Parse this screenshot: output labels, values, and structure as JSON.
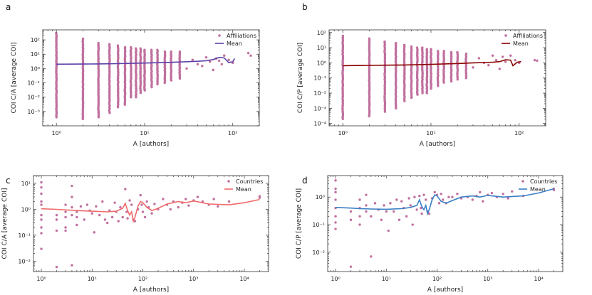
{
  "chart_data": [
    {
      "panel": "a",
      "type": "scatter",
      "xscale": "log",
      "yscale": "log",
      "xlim": [
        0.7,
        200
      ],
      "ylim": [
        0.0001,
        500
      ],
      "xlabel": "A [authors]",
      "ylabel": "COI C/A [average COI]",
      "xticks": [
        1,
        10,
        100
      ],
      "yticks": [
        0.001,
        0.01,
        0.1,
        1,
        10,
        100
      ],
      "legend": {
        "position": "top-right",
        "scatter_label": "Affiliations",
        "line_label": "Mean"
      },
      "scatter_color": "#c0709f",
      "line_color": "#5b3fa8",
      "columns": [
        {
          "x": 1,
          "ymin": 0.0004,
          "ymax": 300
        },
        {
          "x": 2,
          "ymin": 0.0003,
          "ymax": 120
        },
        {
          "x": 3,
          "ymin": 0.0004,
          "ymax": 60
        },
        {
          "x": 4,
          "ymin": 0.0008,
          "ymax": 50
        },
        {
          "x": 5,
          "ymin": 0.002,
          "ymax": 40
        },
        {
          "x": 6,
          "ymin": 0.003,
          "ymax": 30
        },
        {
          "x": 7,
          "ymin": 0.01,
          "ymax": 30
        },
        {
          "x": 8,
          "ymin": 0.01,
          "ymax": 25
        },
        {
          "x": 9,
          "ymin": 0.02,
          "ymax": 25
        },
        {
          "x": 10,
          "ymin": 0.03,
          "ymax": 20
        },
        {
          "x": 12,
          "ymin": 0.05,
          "ymax": 20
        },
        {
          "x": 14,
          "ymin": 0.08,
          "ymax": 20
        },
        {
          "x": 17,
          "ymin": 0.1,
          "ymax": 15
        },
        {
          "x": 20,
          "ymin": 0.15,
          "ymax": 15
        },
        {
          "x": 25,
          "ymin": 0.2,
          "ymax": 15
        }
      ],
      "scatter": [
        [
          30,
          1.0
        ],
        [
          35,
          4.0
        ],
        [
          40,
          2.0
        ],
        [
          45,
          1.5
        ],
        [
          50,
          6.0
        ],
        [
          55,
          3.0
        ],
        [
          60,
          0.8
        ],
        [
          65,
          5.0
        ],
        [
          70,
          3.5
        ],
        [
          75,
          2.0
        ],
        [
          80,
          8.0
        ],
        [
          90,
          4.0
        ],
        [
          100,
          2.5
        ],
        [
          150,
          12.0
        ],
        [
          160,
          8.0
        ]
      ],
      "mean": [
        [
          1,
          2.0
        ],
        [
          2,
          2.05
        ],
        [
          3,
          2.1
        ],
        [
          5,
          2.2
        ],
        [
          10,
          2.4
        ],
        [
          20,
          2.7
        ],
        [
          30,
          3.0
        ],
        [
          40,
          3.2
        ],
        [
          50,
          3.5
        ],
        [
          60,
          4.2
        ],
        [
          70,
          6.0
        ],
        [
          80,
          5.5
        ],
        [
          90,
          2.6
        ],
        [
          100,
          3.0
        ],
        [
          105,
          5.0
        ]
      ]
    },
    {
      "panel": "b",
      "type": "scatter",
      "xscale": "log",
      "yscale": "log",
      "xlim": [
        0.7,
        200
      ],
      "ylim": [
        7e-05,
        150
      ],
      "xlabel": "A [authors]",
      "ylabel": "COI C/P [average COI]",
      "xticks": [
        1,
        10,
        100
      ],
      "yticks": [
        0.0001,
        0.001,
        0.01,
        0.1,
        1,
        10,
        100
      ],
      "legend": {
        "position": "top-right",
        "scatter_label": "Affiliations",
        "line_label": "Mean"
      },
      "scatter_color": "#c0709f",
      "line_color": "#8b0000",
      "columns": [
        {
          "x": 1,
          "ymin": 0.0002,
          "ymax": 60
        },
        {
          "x": 2,
          "ymin": 0.0003,
          "ymax": 40
        },
        {
          "x": 3,
          "ymin": 0.0006,
          "ymax": 25
        },
        {
          "x": 4,
          "ymin": 0.001,
          "ymax": 20
        },
        {
          "x": 5,
          "ymin": 0.003,
          "ymax": 15
        },
        {
          "x": 6,
          "ymin": 0.005,
          "ymax": 12
        },
        {
          "x": 7,
          "ymin": 0.008,
          "ymax": 10
        },
        {
          "x": 8,
          "ymin": 0.01,
          "ymax": 10
        },
        {
          "x": 9,
          "ymin": 0.01,
          "ymax": 8
        },
        {
          "x": 10,
          "ymin": 0.02,
          "ymax": 8
        },
        {
          "x": 12,
          "ymin": 0.03,
          "ymax": 6
        },
        {
          "x": 14,
          "ymin": 0.05,
          "ymax": 6
        },
        {
          "x": 17,
          "ymin": 0.06,
          "ymax": 5
        },
        {
          "x": 20,
          "ymin": 0.08,
          "ymax": 5
        },
        {
          "x": 25,
          "ymin": 0.1,
          "ymax": 4
        }
      ],
      "scatter": [
        [
          30,
          0.5
        ],
        [
          35,
          2.0
        ],
        [
          40,
          1.0
        ],
        [
          45,
          0.7
        ],
        [
          50,
          3.0
        ],
        [
          55,
          1.5
        ],
        [
          60,
          0.4
        ],
        [
          65,
          2.5
        ],
        [
          70,
          1.2
        ],
        [
          80,
          3.0
        ],
        [
          90,
          1.5
        ],
        [
          100,
          1.0
        ],
        [
          150,
          1.5
        ],
        [
          160,
          1.4
        ]
      ],
      "mean": [
        [
          1,
          0.65
        ],
        [
          2,
          0.68
        ],
        [
          3,
          0.7
        ],
        [
          5,
          0.72
        ],
        [
          10,
          0.8
        ],
        [
          20,
          0.9
        ],
        [
          30,
          1.0
        ],
        [
          40,
          1.05
        ],
        [
          50,
          1.1
        ],
        [
          60,
          1.2
        ],
        [
          70,
          1.6
        ],
        [
          80,
          1.5
        ],
        [
          85,
          0.65
        ],
        [
          95,
          1.1
        ],
        [
          105,
          1.2
        ]
      ]
    },
    {
      "panel": "c",
      "type": "scatter",
      "xscale": "log",
      "yscale": "log",
      "xlim": [
        0.7,
        30000
      ],
      "ylim": [
        0.004,
        20
      ],
      "xlabel": "A [authors]",
      "ylabel": "COI C/A [average COI]",
      "xticks": [
        1,
        10,
        100,
        1000,
        10000
      ],
      "yticks": [
        0.01,
        0.1,
        1,
        10
      ],
      "legend": {
        "position": "top-right",
        "scatter_label": "Countries",
        "line_label": "Mean"
      },
      "scatter_color": "#c0709f",
      "line_color": "#f06a6a",
      "scatter": [
        [
          1,
          11
        ],
        [
          1,
          7
        ],
        [
          1,
          4
        ],
        [
          1,
          2
        ],
        [
          1,
          1.5
        ],
        [
          1,
          0.6
        ],
        [
          1,
          0.4
        ],
        [
          1,
          0.2
        ],
        [
          1,
          0.12
        ],
        [
          1,
          0.03
        ],
        [
          2,
          0.6
        ],
        [
          2,
          0.4
        ],
        [
          2,
          0.15
        ],
        [
          2,
          0.006
        ],
        [
          3,
          1.5
        ],
        [
          3,
          0.8
        ],
        [
          3,
          0.5
        ],
        [
          3,
          0.2
        ],
        [
          3,
          0.15
        ],
        [
          4,
          8
        ],
        [
          4,
          3
        ],
        [
          4,
          1.2
        ],
        [
          4,
          0.6
        ],
        [
          4,
          0.007
        ],
        [
          5,
          0.8
        ],
        [
          5,
          0.5
        ],
        [
          5,
          0.25
        ],
        [
          6,
          1.3
        ],
        [
          7,
          0.4
        ],
        [
          8,
          1.5
        ],
        [
          9,
          0.9
        ],
        [
          10,
          0.7
        ],
        [
          11,
          0.13
        ],
        [
          12,
          1.3
        ],
        [
          14,
          0.6
        ],
        [
          16,
          2.0
        ],
        [
          18,
          0.4
        ],
        [
          20,
          0.3
        ],
        [
          22,
          0.9
        ],
        [
          25,
          0.5
        ],
        [
          28,
          1.8
        ],
        [
          30,
          0.8
        ],
        [
          33,
          0.35
        ],
        [
          36,
          1.2
        ],
        [
          40,
          0.5
        ],
        [
          45,
          6.0
        ],
        [
          48,
          0.8
        ],
        [
          50,
          0.45
        ],
        [
          55,
          2.2
        ],
        [
          60,
          1.5
        ],
        [
          65,
          0.4
        ],
        [
          70,
          0.35
        ],
        [
          80,
          1.0
        ],
        [
          90,
          3.5
        ],
        [
          95,
          1.5
        ],
        [
          100,
          0.8
        ],
        [
          110,
          0.5
        ],
        [
          120,
          2.0
        ],
        [
          130,
          1.2
        ],
        [
          150,
          0.7
        ],
        [
          170,
          1.6
        ],
        [
          200,
          1.0
        ],
        [
          250,
          2.5
        ],
        [
          300,
          1.5
        ],
        [
          350,
          1.0
        ],
        [
          400,
          2.0
        ],
        [
          500,
          1.2
        ],
        [
          600,
          1.8
        ],
        [
          700,
          2.5
        ],
        [
          800,
          1.4
        ],
        [
          1000,
          2.2
        ],
        [
          1200,
          3.0
        ],
        [
          1500,
          2.0
        ],
        [
          2000,
          1.5
        ],
        [
          2500,
          2.5
        ],
        [
          3000,
          1.3
        ],
        [
          5000,
          2.0
        ],
        [
          20000,
          2.8
        ],
        [
          20000,
          3.2
        ]
      ],
      "mean": [
        [
          1,
          1.05
        ],
        [
          2,
          1.0
        ],
        [
          3,
          0.95
        ],
        [
          5,
          0.9
        ],
        [
          10,
          0.85
        ],
        [
          20,
          0.8
        ],
        [
          30,
          0.85
        ],
        [
          40,
          1.1
        ],
        [
          45,
          1.7
        ],
        [
          50,
          0.9
        ],
        [
          55,
          0.6
        ],
        [
          60,
          0.8
        ],
        [
          65,
          0.35
        ],
        [
          70,
          0.5
        ],
        [
          80,
          1.3
        ],
        [
          90,
          2.0
        ],
        [
          100,
          1.8
        ],
        [
          120,
          1.2
        ],
        [
          150,
          0.9
        ],
        [
          200,
          1.1
        ],
        [
          300,
          1.6
        ],
        [
          500,
          2.0
        ],
        [
          700,
          1.8
        ],
        [
          1000,
          2.1
        ],
        [
          2000,
          1.6
        ],
        [
          5000,
          1.5
        ],
        [
          10000,
          1.8
        ],
        [
          20000,
          2.4
        ]
      ]
    },
    {
      "panel": "d",
      "type": "scatter",
      "xscale": "log",
      "yscale": "log",
      "xlim": [
        0.7,
        30000
      ],
      "ylim": [
        0.002,
        6
      ],
      "xlabel": "A [authors]",
      "ylabel": "COI C/P [average COI]",
      "xticks": [
        1,
        10,
        100,
        1000,
        10000
      ],
      "yticks": [
        0.01,
        0.1,
        1
      ],
      "legend": {
        "position": "top-right",
        "scatter_label": "Countries",
        "line_label": "Mean"
      },
      "scatter_color": "#c0709f",
      "line_color": "#3a7fc4",
      "scatter": [
        [
          1,
          4
        ],
        [
          1,
          2
        ],
        [
          1,
          1.5
        ],
        [
          1,
          0.8
        ],
        [
          1,
          0.4
        ],
        [
          1,
          0.2
        ],
        [
          1,
          0.12
        ],
        [
          1,
          0.07
        ],
        [
          2,
          0.3
        ],
        [
          2,
          0.15
        ],
        [
          2,
          0.003
        ],
        [
          3,
          0.8
        ],
        [
          3,
          0.4
        ],
        [
          3,
          0.2
        ],
        [
          3,
          0.1
        ],
        [
          4,
          1.2
        ],
        [
          4,
          0.5
        ],
        [
          4,
          0.3
        ],
        [
          5,
          0.2
        ],
        [
          5,
          0.007
        ],
        [
          6,
          0.6
        ],
        [
          7,
          0.35
        ],
        [
          8,
          0.15
        ],
        [
          9,
          0.5
        ],
        [
          10,
          0.3
        ],
        [
          11,
          0.06
        ],
        [
          12,
          0.6
        ],
        [
          14,
          0.3
        ],
        [
          16,
          0.8
        ],
        [
          18,
          0.15
        ],
        [
          20,
          0.7
        ],
        [
          22,
          0.4
        ],
        [
          25,
          0.2
        ],
        [
          28,
          0.9
        ],
        [
          30,
          0.5
        ],
        [
          33,
          0.1
        ],
        [
          36,
          1.0
        ],
        [
          40,
          0.35
        ],
        [
          45,
          1.1
        ],
        [
          48,
          0.4
        ],
        [
          50,
          0.25
        ],
        [
          55,
          1.2
        ],
        [
          60,
          0.8
        ],
        [
          65,
          0.3
        ],
        [
          70,
          0.25
        ],
        [
          80,
          0.9
        ],
        [
          90,
          1.5
        ],
        [
          100,
          1.2
        ],
        [
          110,
          0.6
        ],
        [
          120,
          1.3
        ],
        [
          130,
          0.8
        ],
        [
          150,
          0.6
        ],
        [
          170,
          1.0
        ],
        [
          200,
          1.0
        ],
        [
          250,
          1.3
        ],
        [
          300,
          0.9
        ],
        [
          400,
          1.0
        ],
        [
          500,
          0.8
        ],
        [
          600,
          1.1
        ],
        [
          700,
          1.5
        ],
        [
          800,
          0.7
        ],
        [
          1000,
          1.2
        ],
        [
          1200,
          1.4
        ],
        [
          1500,
          1.0
        ],
        [
          2000,
          1.3
        ],
        [
          2500,
          0.9
        ],
        [
          3000,
          1.6
        ],
        [
          5000,
          1.1
        ],
        [
          20000,
          2.0
        ],
        [
          20000,
          1.8
        ]
      ],
      "mean": [
        [
          1,
          0.42
        ],
        [
          2,
          0.4
        ],
        [
          3,
          0.38
        ],
        [
          5,
          0.37
        ],
        [
          10,
          0.36
        ],
        [
          20,
          0.38
        ],
        [
          30,
          0.42
        ],
        [
          40,
          0.5
        ],
        [
          45,
          0.8
        ],
        [
          50,
          0.45
        ],
        [
          55,
          0.35
        ],
        [
          60,
          0.5
        ],
        [
          65,
          0.25
        ],
        [
          70,
          0.35
        ],
        [
          80,
          0.8
        ],
        [
          90,
          1.2
        ],
        [
          100,
          1.1
        ],
        [
          120,
          0.7
        ],
        [
          150,
          0.6
        ],
        [
          200,
          0.75
        ],
        [
          300,
          1.0
        ],
        [
          500,
          1.1
        ],
        [
          700,
          1.0
        ],
        [
          1000,
          1.15
        ],
        [
          2000,
          1.0
        ],
        [
          5000,
          1.1
        ],
        [
          10000,
          1.4
        ],
        [
          20000,
          2.0
        ]
      ]
    }
  ]
}
